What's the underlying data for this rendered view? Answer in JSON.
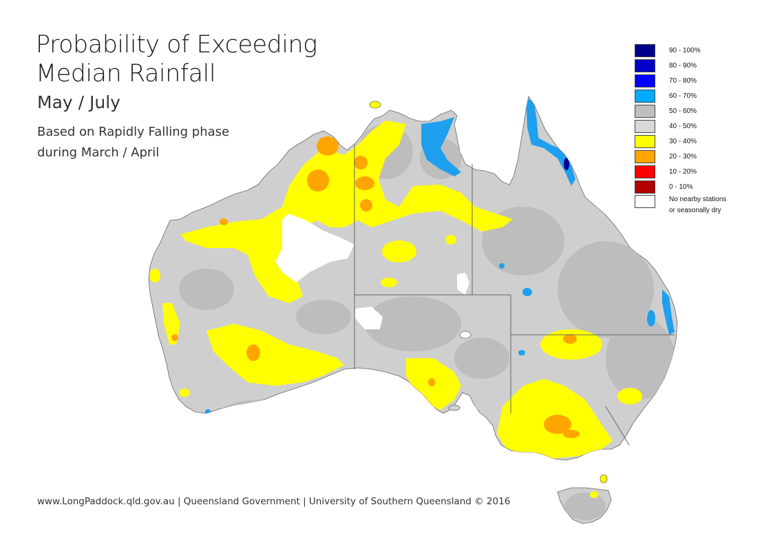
{
  "title": {
    "line1": "Probability of Exceeding",
    "line2": "Median Rainfall"
  },
  "subtitle": "May / July",
  "description": {
    "line1": "Based on Rapidly Falling phase",
    "line2": "during March / April"
  },
  "legend": {
    "items": [
      {
        "label": "90 - 100%",
        "color": "#00008b"
      },
      {
        "label": "80 - 90%",
        "color": "#0000c8"
      },
      {
        "label": "70 - 80%",
        "color": "#0000ff"
      },
      {
        "label": "60 - 70%",
        "color": "#00aaff"
      },
      {
        "label": "50 - 60%",
        "color": "#bfbfbf"
      },
      {
        "label": "40 - 50%",
        "color": "#d8d8d8"
      },
      {
        "label": "30 - 40%",
        "color": "#ffff00"
      },
      {
        "label": "20 - 30%",
        "color": "#ffa500"
      },
      {
        "label": "10 - 20%",
        "color": "#ff0000"
      },
      {
        "label": "0 - 10%",
        "color": "#b30000"
      }
    ],
    "nodata": {
      "line1": "No nearby stations",
      "line2": "or seasonally dry",
      "color": "#ffffff"
    }
  },
  "map": {
    "land_color": "#c8c8c8",
    "state_border_color": "#555555"
  },
  "footer": "www.LongPaddock.qld.gov.au | Queensland Government | University of Southern Queensland © 2016"
}
